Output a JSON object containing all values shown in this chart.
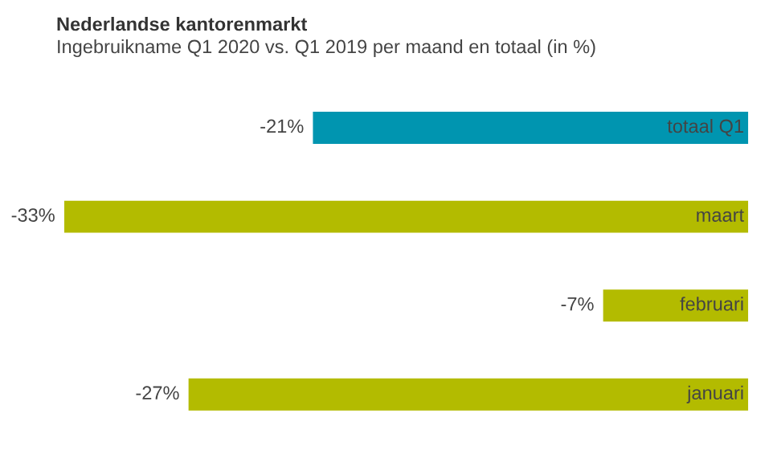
{
  "chart_data": {
    "type": "bar",
    "orientation": "horizontal",
    "title": "Nederlandse kantorenmarkt",
    "subtitle": "Ingebruikname Q1 2020 vs. Q1 2019 per maand en totaal (in %)",
    "categories": [
      "totaal Q1",
      "maart",
      "februari",
      "januari"
    ],
    "values": [
      -21,
      -33,
      -7,
      -27
    ],
    "colors": [
      "#0095b0",
      "#b3bb00",
      "#b3bb00",
      "#b3bb00"
    ],
    "value_labels": [
      "-21%",
      "-33%",
      "-7%",
      "-27%"
    ],
    "legend": false
  }
}
